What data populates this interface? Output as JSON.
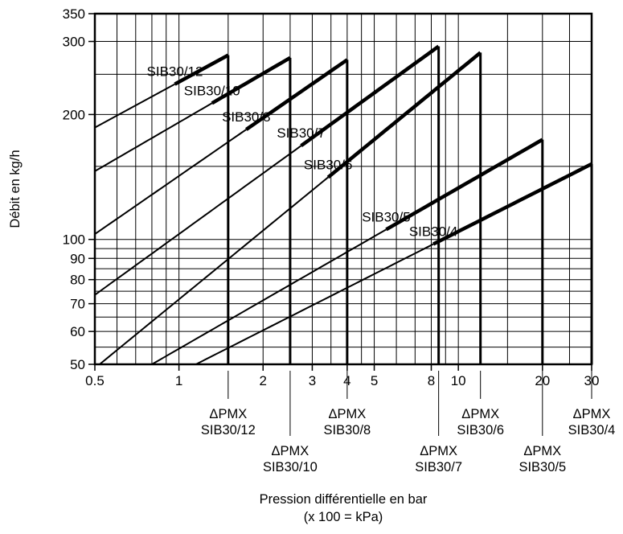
{
  "chart_data": {
    "type": "line",
    "xscale": "log",
    "yscale": "log",
    "xlim": [
      0.5,
      30
    ],
    "ylim": [
      50,
      350
    ],
    "grid": true,
    "xlabel": "Pression différentielle en bar",
    "xlabel_sub": "(x 100 = kPa)",
    "ylabel": "Débit en kg/h",
    "x_ticks": [
      0.5,
      1,
      2,
      3,
      4,
      5,
      8,
      10,
      20,
      30
    ],
    "x_tick_labels": [
      "0.5",
      "1",
      "2",
      "3",
      "4",
      "5",
      "8",
      "10",
      "20",
      "30"
    ],
    "y_ticks": [
      50,
      60,
      70,
      80,
      90,
      100,
      200,
      300,
      350
    ],
    "y_tick_labels": [
      "50",
      "60",
      "70",
      "80",
      "90",
      "100",
      "200",
      "300",
      "350"
    ],
    "series": [
      {
        "name": "SIB30/12",
        "pmx": 1.5,
        "x": [
          0.5,
          1.5
        ],
        "y": [
          186,
          278
        ],
        "max_y": 278
      },
      {
        "name": "SIB30/10",
        "pmx": 2.5,
        "x": [
          0.5,
          2.5
        ],
        "y": [
          146,
          274
        ],
        "max_y": 274
      },
      {
        "name": "SIB30/8",
        "pmx": 4,
        "x": [
          0.5,
          4
        ],
        "y": [
          103,
          271
        ],
        "max_y": 271
      },
      {
        "name": "SIB30/7",
        "pmx": 8.5,
        "x": [
          0.5,
          8.5
        ],
        "y": [
          73.5,
          292
        ],
        "max_y": 292
      },
      {
        "name": "SIB30/6",
        "pmx": 12,
        "x": [
          0.52,
          12
        ],
        "y": [
          50,
          282
        ],
        "max_y": 282
      },
      {
        "name": "SIB30/5",
        "pmx": 20,
        "x": [
          0.8,
          20
        ],
        "y": [
          50,
          174
        ],
        "max_y": 174
      },
      {
        "name": "SIB30/4",
        "pmx": 30,
        "x": [
          1.15,
          30
        ],
        "y": [
          50,
          152
        ],
        "max_y": 152
      }
    ],
    "pmx_annotations": [
      {
        "line1": "ΔPMX",
        "line2": "SIB30/12"
      },
      {
        "line1": "ΔPMX",
        "line2": "SIB30/10"
      },
      {
        "line1": "ΔPMX",
        "line2": "SIB30/8"
      },
      {
        "line1": "ΔPMX",
        "line2": "SIB30/7"
      },
      {
        "line1": "ΔPMX",
        "line2": "SIB30/6"
      },
      {
        "line1": "ΔPMX",
        "line2": "SIB30/5"
      },
      {
        "line1": "ΔPMX",
        "line2": "SIB30/4"
      }
    ]
  }
}
